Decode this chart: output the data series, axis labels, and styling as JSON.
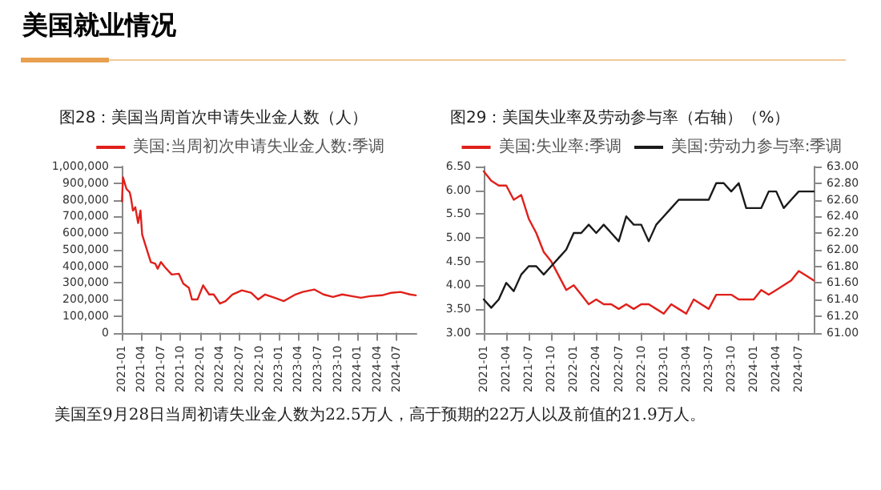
{
  "chart_data": [
    {
      "type": "other",
      "title": "美国就业情况",
      "annotations": [
        "美国至9月28日当周初请失业金人数为22.5万人，高于预期的22万人以及前值的21.9万人。"
      ]
    },
    {
      "type": "line",
      "title": "图28：美国当周首次申请失业金人数（人）",
      "legend": "top",
      "grid": false,
      "marker": "none",
      "line_style": "solid",
      "x": [
        "2021-01-02",
        "2021-01-07",
        "2021-01-23",
        "2021-02-07",
        "2021-02-13",
        "2021-02-22",
        "2021-03-05",
        "2021-03-18",
        "2021-03-29",
        "2021-04-06",
        "2021-04-24",
        "2021-05-16",
        "2021-06-06",
        "2021-06-17",
        "2021-07-02",
        "2021-07-20",
        "2021-08-21",
        "2021-09-23",
        "2021-10-14",
        "2021-11-09",
        "2021-11-23",
        "2021-12-19",
        "2022-01-14",
        "2022-02-11",
        "2022-03-04",
        "2022-04-02",
        "2022-04-28",
        "2022-05-30",
        "2022-07-13",
        "2022-08-25",
        "2022-09-27",
        "2022-10-29",
        "2022-12-12",
        "2023-01-24",
        "2023-03-19",
        "2023-04-21",
        "2023-06-14",
        "2023-07-27",
        "2023-09-09",
        "2023-10-22",
        "2023-12-05",
        "2024-01-17",
        "2024-02-29",
        "2024-04-24",
        "2024-06-06",
        "2024-07-19",
        "2024-09-01",
        "2024-09-28"
      ],
      "series": [
        {
          "name": "美国:当周初次申请失业金人数:季调",
          "color": "#e0201b",
          "values": [
            790000,
            935000,
            865000,
            845000,
            810000,
            735000,
            755000,
            660000,
            735000,
            590000,
            515000,
            425000,
            415000,
            385000,
            425000,
            395000,
            350000,
            355000,
            295000,
            270000,
            200000,
            200000,
            285000,
            230000,
            230000,
            175000,
            190000,
            230000,
            255000,
            240000,
            200000,
            230000,
            210000,
            190000,
            230000,
            245000,
            260000,
            230000,
            215000,
            230000,
            220000,
            210000,
            220000,
            225000,
            240000,
            245000,
            230000,
            225000
          ]
        }
      ],
      "xlim": [
        "2021-01",
        "2024-10"
      ],
      "xticks": [
        "2021-01",
        "2021-04",
        "2021-07",
        "2021-10",
        "2022-01",
        "2022-04",
        "2022-07",
        "2022-10",
        "2023-01",
        "2023-04",
        "2023-07",
        "2023-10",
        "2024-01",
        "2024-04",
        "2024-07"
      ],
      "ylim": [
        0,
        1000000
      ],
      "yticks": [
        0,
        {
          "value": 100000,
          "label": "100,000"
        },
        {
          "value": 200000,
          "label": "200,000"
        },
        {
          "value": 300000,
          "label": "300,000"
        },
        {
          "value": 400000,
          "label": "400,000"
        },
        {
          "value": 500000,
          "label": "500,000"
        },
        {
          "value": 600000,
          "label": "600,000"
        },
        {
          "value": 700000,
          "label": "700,000"
        },
        {
          "value": 800000,
          "label": "800,000"
        },
        {
          "value": 900000,
          "label": "900,000"
        },
        {
          "value": 1000000,
          "label": "1,000,000"
        }
      ]
    },
    {
      "type": "line",
      "title": "图29：美国失业率及劳动参与率（右轴）（%）",
      "legend": "top",
      "grid": false,
      "marker": "none",
      "line_style": "solid",
      "categories": [
        "2021-01",
        null,
        null,
        "2021-04",
        null,
        null,
        "2021-07",
        null,
        null,
        "2021-10",
        null,
        null,
        "2022-01",
        null,
        null,
        "2022-04",
        null,
        null,
        "2022-07",
        null,
        null,
        "2022-10",
        null,
        null,
        "2023-01",
        null,
        null,
        "2023-04",
        null,
        null,
        "2023-07",
        null,
        null,
        "2023-10",
        null,
        null,
        "2024-01",
        null,
        null,
        "2024-04",
        null,
        null,
        "2024-07",
        null,
        null
      ],
      "series": [
        {
          "name": "美国:失业率:季调",
          "color": "#e0201b",
          "values": [
            6.4,
            6.2,
            6.1,
            6.1,
            5.8,
            5.9,
            5.4,
            5.1,
            4.7,
            4.5,
            4.2,
            3.9,
            4.0,
            3.8,
            3.6,
            3.7,
            3.6,
            3.6,
            3.5,
            3.6,
            3.5,
            3.6,
            3.6,
            3.5,
            3.4,
            3.6,
            3.5,
            3.4,
            3.7,
            3.6,
            3.5,
            3.8,
            3.8,
            3.8,
            3.7,
            3.7,
            3.7,
            3.9,
            3.8,
            3.9,
            4.0,
            4.1,
            4.3,
            4.2,
            4.1
          ]
        },
        {
          "name": "美国:劳动力参与率:季调",
          "color": "#1a1a1a",
          "axis": "y2",
          "values": [
            61.4,
            61.3,
            61.4,
            61.6,
            61.5,
            61.7,
            61.8,
            61.8,
            61.7,
            61.8,
            61.9,
            62.0,
            62.2,
            62.2,
            62.3,
            62.2,
            62.3,
            62.2,
            62.1,
            62.4,
            62.3,
            62.3,
            62.1,
            62.3,
            62.4,
            62.5,
            62.6,
            62.6,
            62.6,
            62.6,
            62.6,
            62.8,
            62.8,
            62.7,
            62.8,
            62.5,
            62.5,
            62.5,
            62.7,
            62.7,
            62.5,
            62.6,
            62.7,
            62.7,
            62.7
          ]
        }
      ],
      "ylim": [
        3,
        6.5
      ],
      "yticks": [
        {
          "value": 3,
          "label": "3.00"
        },
        {
          "value": 3.5,
          "label": "3.50"
        },
        {
          "value": 4,
          "label": "4.00"
        },
        {
          "value": 4.5,
          "label": "4.50"
        },
        {
          "value": 5,
          "label": "5.00"
        },
        {
          "value": 5.5,
          "label": "5.50"
        },
        {
          "value": 6,
          "label": "6.00"
        },
        {
          "value": 6.5,
          "label": "6.50"
        }
      ],
      "y2lim": [
        61,
        63
      ],
      "y2ticks": [
        {
          "value": 61,
          "label": "61.00"
        },
        {
          "value": 61.2,
          "label": "61.20"
        },
        {
          "value": 61.4,
          "label": "61.40"
        },
        {
          "value": 61.6,
          "label": "61.60"
        },
        {
          "value": 61.8,
          "label": "61.80"
        },
        {
          "value": 62,
          "label": "62.00"
        },
        {
          "value": 62.2,
          "label": "62.20"
        },
        {
          "value": 62.4,
          "label": "62.40"
        },
        {
          "value": 62.6,
          "label": "62.60"
        },
        {
          "value": 62.8,
          "label": "62.80"
        },
        {
          "value": 63,
          "label": "63.00"
        }
      ]
    }
  ]
}
